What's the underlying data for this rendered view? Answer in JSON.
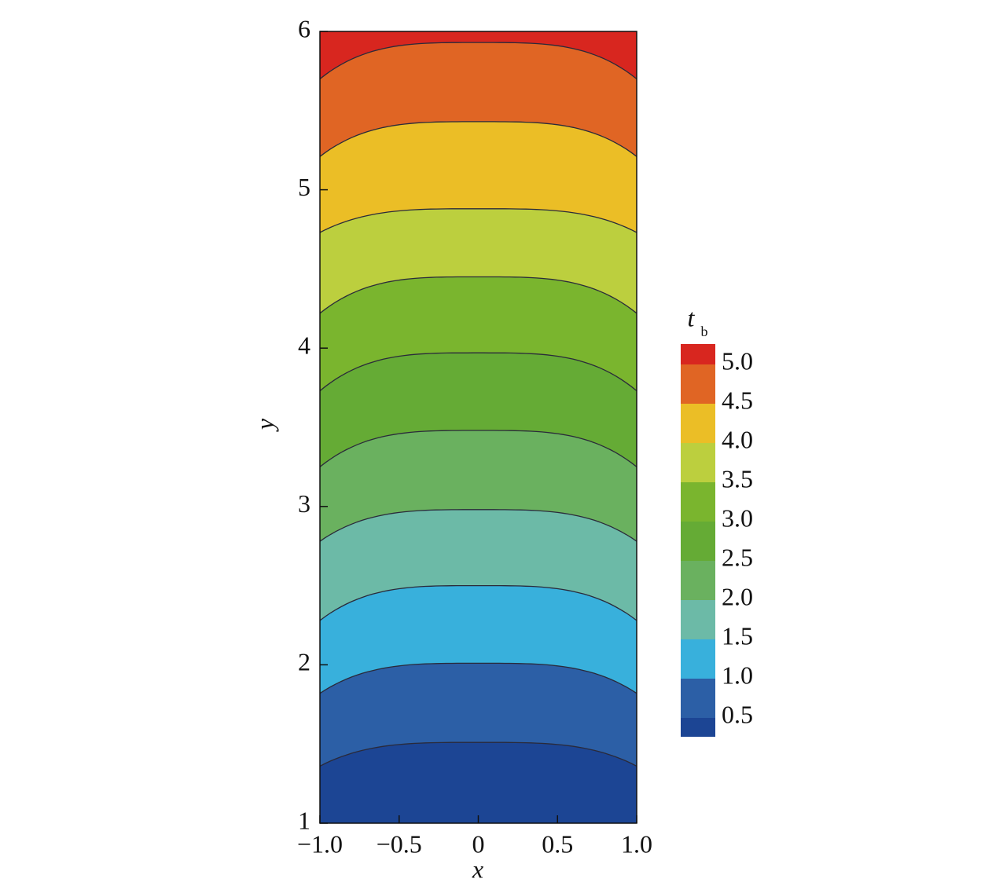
{
  "chart_data": {
    "type": "contour",
    "xlabel": "x",
    "ylabel": "y",
    "xlim": [
      -1,
      1
    ],
    "ylim": [
      1,
      6
    ],
    "xticks": [
      {
        "value": -1,
        "label": "−1.0"
      },
      {
        "value": -0.5,
        "label": "−0.5"
      },
      0,
      {
        "value": 0.5,
        "label": "0.5"
      },
      {
        "value": 1,
        "label": "1.0"
      }
    ],
    "yticks": [
      1,
      2,
      3,
      4,
      5,
      6
    ],
    "colorbar_title": {
      "main": "t",
      "sub": "b"
    },
    "colorbar_lim": [
      0.25,
      5.25
    ],
    "levels": [
      {
        "value": 0.5,
        "label": "0.5"
      },
      {
        "value": 1,
        "label": "1.0"
      },
      {
        "value": 1.5,
        "label": "1.5"
      },
      {
        "value": 2,
        "label": "2.0"
      },
      {
        "value": 2.5,
        "label": "2.5"
      },
      {
        "value": 3,
        "label": "3.0"
      },
      {
        "value": 3.5,
        "label": "3.5"
      },
      {
        "value": 4,
        "label": "4.0"
      },
      {
        "value": 4.5,
        "label": "4.5"
      },
      {
        "value": 5,
        "label": "5.0"
      }
    ],
    "colors": [
      "#1c4594",
      "#2c5fa6",
      "#38b0dc",
      "#6cbaa7",
      "#6ab15f",
      "#65ab35",
      "#7ab52e",
      "#bccf3e",
      "#ebbe26",
      "#e06524",
      "#d8261f"
    ],
    "contours": [
      {
        "y_center": 1.51,
        "y_edge": 1.36
      },
      {
        "y_center": 2.01,
        "y_edge": 1.82
      },
      {
        "y_center": 2.5,
        "y_edge": 2.28
      },
      {
        "y_center": 2.98,
        "y_edge": 2.78
      },
      {
        "y_center": 3.48,
        "y_edge": 3.25
      },
      {
        "y_center": 3.97,
        "y_edge": 3.73
      },
      {
        "y_center": 4.45,
        "y_edge": 4.22
      },
      {
        "y_center": 4.88,
        "y_edge": 4.73
      },
      {
        "y_center": 5.43,
        "y_edge": 5.21
      },
      {
        "y_center": 5.93,
        "y_edge": 5.7
      }
    ]
  }
}
